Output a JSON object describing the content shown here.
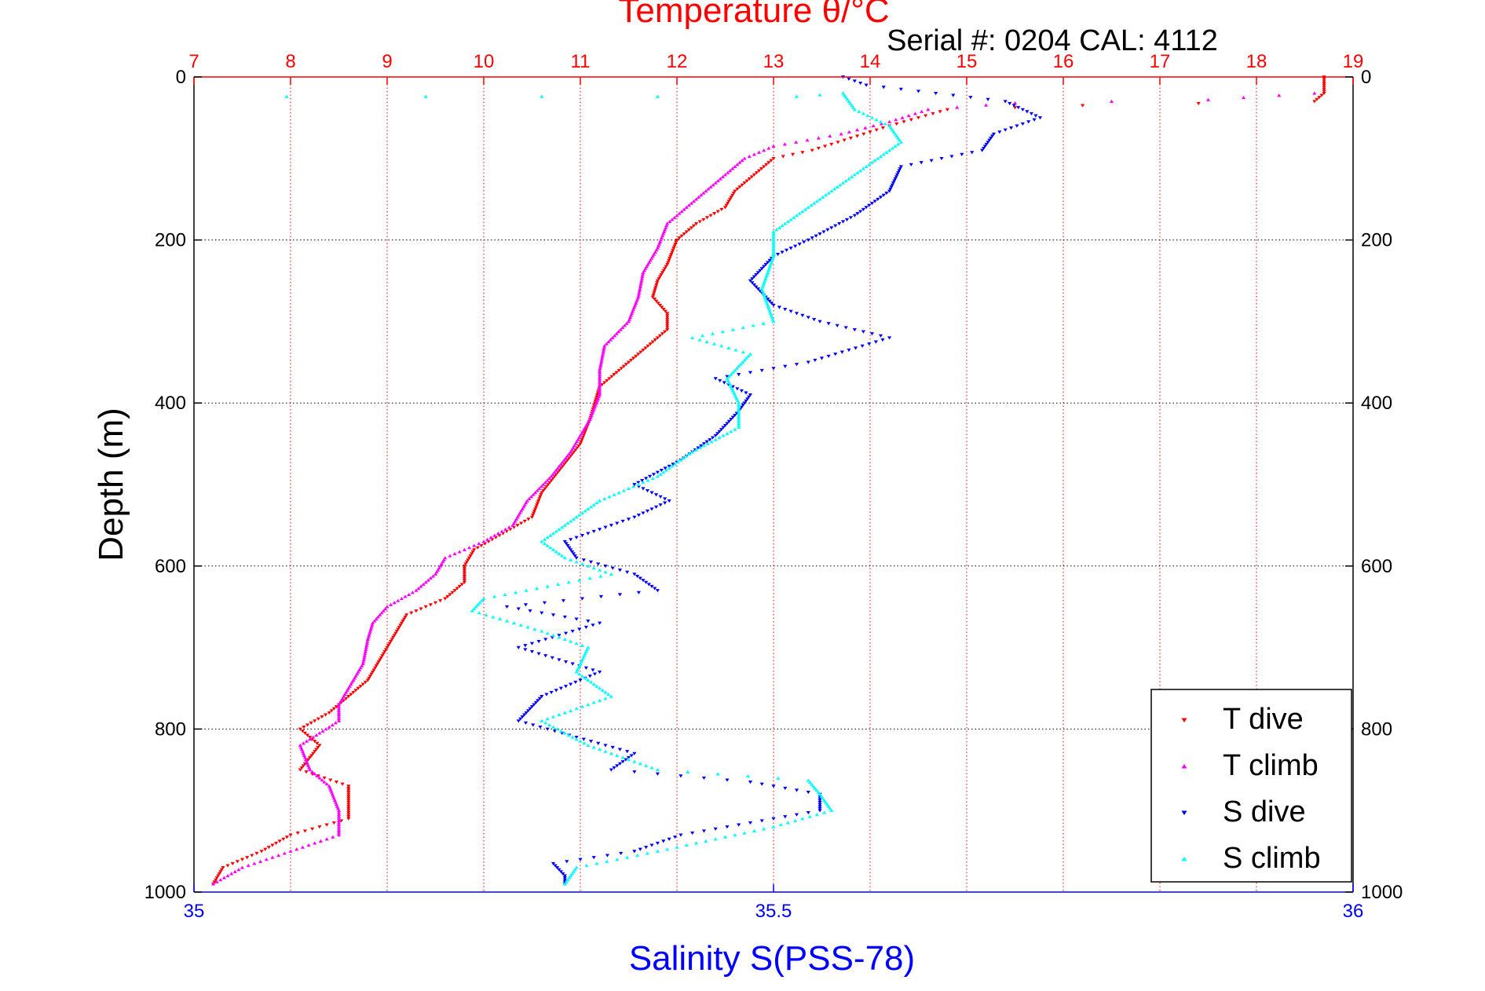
{
  "chart_data": {
    "type": "scatter",
    "title": "Temperature θ/°C",
    "subtitle": "Serial #: 0204  CAL: 4112",
    "ylabel": "Depth (m)",
    "xlabel": "Salinity S(PSS-78)",
    "depth_axis": {
      "range": [
        0,
        1000
      ],
      "reversed": true,
      "ticks": [
        0,
        200,
        400,
        600,
        800,
        1000
      ]
    },
    "temperature_axis": {
      "range": [
        7,
        19
      ],
      "ticks": [
        7,
        8,
        9,
        10,
        11,
        12,
        13,
        14,
        15,
        16,
        17,
        18,
        19
      ],
      "color": "#ff0000"
    },
    "salinity_axis": {
      "range": [
        35,
        36
      ],
      "ticks": [
        35,
        35.5,
        36
      ],
      "tick_labels": [
        "35",
        "35.5",
        "36"
      ],
      "color": "#0000ff"
    },
    "grid": true,
    "legend_position": "bottom-right",
    "series": [
      {
        "name": "T dive",
        "axis": "temperature",
        "color": "#ff0000",
        "marker": "triangle-down",
        "points": [
          [
            18.7,
            0
          ],
          [
            18.7,
            20
          ],
          [
            18.6,
            30
          ],
          [
            16.2,
            35
          ],
          [
            14.8,
            40
          ],
          [
            14.5,
            50
          ],
          [
            14.2,
            60
          ],
          [
            13.8,
            75
          ],
          [
            13.4,
            90
          ],
          [
            13.0,
            100
          ],
          [
            12.8,
            120
          ],
          [
            12.6,
            140
          ],
          [
            12.5,
            160
          ],
          [
            12.2,
            180
          ],
          [
            12.0,
            200
          ],
          [
            11.9,
            230
          ],
          [
            11.8,
            250
          ],
          [
            11.75,
            270
          ],
          [
            11.9,
            290
          ],
          [
            11.9,
            310
          ],
          [
            11.6,
            340
          ],
          [
            11.4,
            360
          ],
          [
            11.2,
            380
          ],
          [
            11.15,
            400
          ],
          [
            11.1,
            420
          ],
          [
            11.0,
            450
          ],
          [
            10.8,
            480
          ],
          [
            10.6,
            510
          ],
          [
            10.5,
            540
          ],
          [
            10.2,
            560
          ],
          [
            9.9,
            580
          ],
          [
            9.8,
            600
          ],
          [
            9.8,
            620
          ],
          [
            9.6,
            640
          ],
          [
            9.2,
            660
          ],
          [
            9.1,
            680
          ],
          [
            9.0,
            700
          ],
          [
            8.9,
            720
          ],
          [
            8.8,
            740
          ],
          [
            8.6,
            760
          ],
          [
            8.4,
            780
          ],
          [
            8.1,
            800
          ],
          [
            8.3,
            820
          ],
          [
            8.1,
            850
          ],
          [
            8.6,
            870
          ],
          [
            8.6,
            890
          ],
          [
            8.6,
            910
          ],
          [
            8.0,
            930
          ],
          [
            7.7,
            950
          ],
          [
            7.3,
            970
          ],
          [
            7.2,
            990
          ]
        ]
      },
      {
        "name": "T climb",
        "axis": "temperature",
        "color": "#ff00ff",
        "marker": "triangle-up",
        "points": [
          [
            18.6,
            20
          ],
          [
            17.5,
            28
          ],
          [
            15.5,
            32
          ],
          [
            14.6,
            40
          ],
          [
            14.2,
            55
          ],
          [
            13.7,
            70
          ],
          [
            13.0,
            85
          ],
          [
            12.7,
            100
          ],
          [
            12.5,
            120
          ],
          [
            12.3,
            140
          ],
          [
            12.1,
            160
          ],
          [
            11.9,
            180
          ],
          [
            11.8,
            210
          ],
          [
            11.65,
            240
          ],
          [
            11.6,
            270
          ],
          [
            11.5,
            300
          ],
          [
            11.25,
            330
          ],
          [
            11.2,
            360
          ],
          [
            11.2,
            390
          ],
          [
            11.1,
            420
          ],
          [
            10.9,
            460
          ],
          [
            10.7,
            490
          ],
          [
            10.45,
            520
          ],
          [
            10.3,
            550
          ],
          [
            10.0,
            570
          ],
          [
            9.6,
            590
          ],
          [
            9.5,
            610
          ],
          [
            9.3,
            630
          ],
          [
            9.0,
            650
          ],
          [
            8.85,
            670
          ],
          [
            8.8,
            690
          ],
          [
            8.75,
            720
          ],
          [
            8.6,
            750
          ],
          [
            8.5,
            770
          ],
          [
            8.5,
            790
          ],
          [
            8.1,
            820
          ],
          [
            8.2,
            850
          ],
          [
            8.4,
            870
          ],
          [
            8.5,
            900
          ],
          [
            8.5,
            930
          ],
          [
            8.0,
            950
          ],
          [
            7.5,
            970
          ],
          [
            7.2,
            990
          ]
        ]
      },
      {
        "name": "S dive",
        "axis": "salinity",
        "color": "#0000ff",
        "marker": "triangle-down",
        "points": [
          [
            35.56,
            0
          ],
          [
            35.58,
            10
          ],
          [
            35.7,
            30
          ],
          [
            35.73,
            50
          ],
          [
            35.69,
            70
          ],
          [
            35.68,
            90
          ],
          [
            35.61,
            110
          ],
          [
            35.6,
            140
          ],
          [
            35.57,
            170
          ],
          [
            35.53,
            200
          ],
          [
            35.5,
            220
          ],
          [
            35.48,
            250
          ],
          [
            35.5,
            280
          ],
          [
            35.54,
            300
          ],
          [
            35.6,
            320
          ],
          [
            35.53,
            350
          ],
          [
            35.45,
            370
          ],
          [
            35.48,
            390
          ],
          [
            35.47,
            410
          ],
          [
            35.45,
            440
          ],
          [
            35.42,
            470
          ],
          [
            35.38,
            500
          ],
          [
            35.41,
            520
          ],
          [
            35.38,
            540
          ],
          [
            35.32,
            570
          ],
          [
            35.33,
            590
          ],
          [
            35.38,
            610
          ],
          [
            35.4,
            630
          ],
          [
            35.27,
            650
          ],
          [
            35.35,
            670
          ],
          [
            35.28,
            700
          ],
          [
            35.35,
            730
          ],
          [
            35.3,
            760
          ],
          [
            35.28,
            790
          ],
          [
            35.33,
            810
          ],
          [
            35.38,
            830
          ],
          [
            35.36,
            850
          ],
          [
            35.48,
            865
          ],
          [
            35.54,
            880
          ],
          [
            35.54,
            900
          ],
          [
            35.42,
            930
          ],
          [
            35.38,
            950
          ],
          [
            35.31,
            965
          ],
          [
            35.32,
            980
          ],
          [
            35.32,
            990
          ]
        ]
      },
      {
        "name": "S climb",
        "axis": "salinity",
        "color": "#00ffff",
        "marker": "triangle-up",
        "points": [
          [
            35.08,
            24
          ],
          [
            35.2,
            24
          ],
          [
            35.3,
            24
          ],
          [
            35.4,
            24
          ],
          [
            35.52,
            24
          ],
          [
            35.56,
            20
          ],
          [
            35.57,
            40
          ],
          [
            35.6,
            60
          ],
          [
            35.61,
            80
          ],
          [
            35.59,
            100
          ],
          [
            35.57,
            120
          ],
          [
            35.55,
            140
          ],
          [
            35.52,
            170
          ],
          [
            35.5,
            190
          ],
          [
            35.5,
            220
          ],
          [
            35.49,
            260
          ],
          [
            35.5,
            300
          ],
          [
            35.43,
            320
          ],
          [
            35.48,
            340
          ],
          [
            35.46,
            370
          ],
          [
            35.47,
            400
          ],
          [
            35.47,
            430
          ],
          [
            35.43,
            460
          ],
          [
            35.4,
            490
          ],
          [
            35.35,
            520
          ],
          [
            35.32,
            550
          ],
          [
            35.3,
            570
          ],
          [
            35.32,
            590
          ],
          [
            35.36,
            610
          ],
          [
            35.25,
            640
          ],
          [
            35.24,
            655
          ],
          [
            35.3,
            680
          ],
          [
            35.34,
            700
          ],
          [
            35.33,
            730
          ],
          [
            35.36,
            760
          ],
          [
            35.3,
            790
          ],
          [
            35.34,
            820
          ],
          [
            35.4,
            850
          ],
          [
            35.53,
            863
          ],
          [
            35.54,
            880
          ],
          [
            35.55,
            900
          ],
          [
            35.5,
            920
          ],
          [
            35.4,
            950
          ],
          [
            35.33,
            970
          ],
          [
            35.32,
            990
          ]
        ]
      }
    ]
  }
}
